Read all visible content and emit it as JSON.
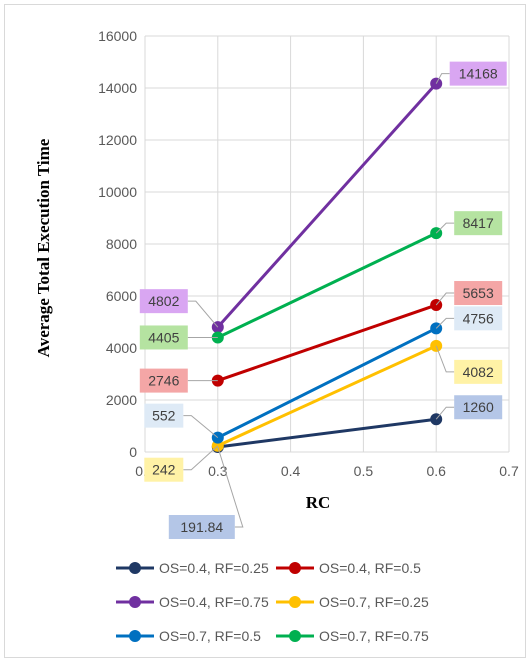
{
  "chart_data": {
    "type": "line",
    "xlabel": "RC",
    "ylabel": "Average Total Execution Time",
    "xlim": [
      0.2,
      0.7
    ],
    "ylim": [
      0,
      16000
    ],
    "x_ticks": [
      "0.2",
      "0.3",
      "0.4",
      "0.5",
      "0.6",
      "0.7"
    ],
    "y_ticks": [
      "0",
      "2000",
      "4000",
      "6000",
      "8000",
      "10000",
      "12000",
      "14000",
      "16000"
    ],
    "grid": true,
    "legend_position": "bottom",
    "series": [
      {
        "name": "OS=0.4, RF=0.25",
        "color": "#1f3864",
        "label_bg": "#b4c6e7",
        "x": [
          0.3,
          0.6
        ],
        "values": [
          191.84,
          1260
        ],
        "labels": [
          "191.84",
          "1260"
        ]
      },
      {
        "name": "OS=0.4, RF=0.5",
        "color": "#c00000",
        "label_bg": "#f4a6a6",
        "x": [
          0.3,
          0.6
        ],
        "values": [
          2746,
          5653
        ],
        "labels": [
          "2746",
          "5653"
        ]
      },
      {
        "name": "OS=0.4, RF=0.75",
        "color": "#7030a0",
        "label_bg": "#d9a6f2",
        "x": [
          0.3,
          0.6
        ],
        "values": [
          4802,
          14168
        ],
        "labels": [
          "4802",
          "14168"
        ]
      },
      {
        "name": "OS=0.7, RF=0.25",
        "color": "#ffc000",
        "label_bg": "#fff2a6",
        "x": [
          0.3,
          0.6
        ],
        "values": [
          242,
          4082
        ],
        "labels": [
          "242",
          "4082"
        ]
      },
      {
        "name": "OS=0.7, RF=0.5",
        "color": "#0070c0",
        "label_bg": "#deeaf6",
        "x": [
          0.3,
          0.6
        ],
        "values": [
          552,
          4756
        ],
        "labels": [
          "552",
          "4756"
        ]
      },
      {
        "name": "OS=0.7, RF=0.75",
        "color": "#00b050",
        "label_bg": "#b5e3a1",
        "x": [
          0.3,
          0.6
        ],
        "values": [
          4405,
          8417
        ],
        "labels": [
          "4405",
          "8417"
        ]
      }
    ]
  }
}
